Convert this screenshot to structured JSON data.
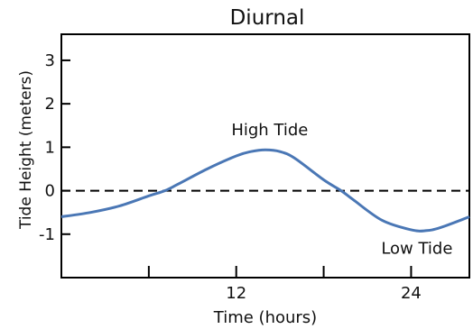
{
  "chart_data": {
    "type": "line",
    "title": "Diurnal",
    "xlabel": "Time (hours)",
    "ylabel": "Tide Height (meters)",
    "xlim": [
      0,
      28
    ],
    "ylim": [
      -2,
      3.6
    ],
    "x_ticks": [
      6,
      12,
      18,
      24
    ],
    "x_tick_labels": [
      "",
      "12",
      "",
      "24"
    ],
    "y_ticks": [
      3,
      2,
      1,
      0,
      -1
    ],
    "y_tick_labels": [
      "3",
      "2",
      "1",
      "0",
      "-1"
    ],
    "grid": false,
    "reference_line": {
      "y": 0,
      "style": "dashed",
      "color": "#000000"
    },
    "series": [
      {
        "color": "#4a77b5",
        "x": [
          0,
          2,
          4,
          6,
          7.1,
          8,
          10,
          12,
          13,
          14,
          15,
          16,
          18,
          19.2,
          20,
          22,
          24,
          25,
          26,
          28
        ],
        "y": [
          -0.6,
          -0.5,
          -0.35,
          -0.12,
          0,
          0.15,
          0.5,
          0.8,
          0.9,
          0.94,
          0.9,
          0.75,
          0.25,
          0,
          -0.2,
          -0.68,
          -0.9,
          -0.92,
          -0.85,
          -0.6
        ]
      }
    ],
    "annotations": [
      {
        "text": "High Tide",
        "x": 14.3,
        "y": 1.28
      },
      {
        "text": "Low Tide",
        "x": 24.4,
        "y": -1.45
      }
    ]
  }
}
